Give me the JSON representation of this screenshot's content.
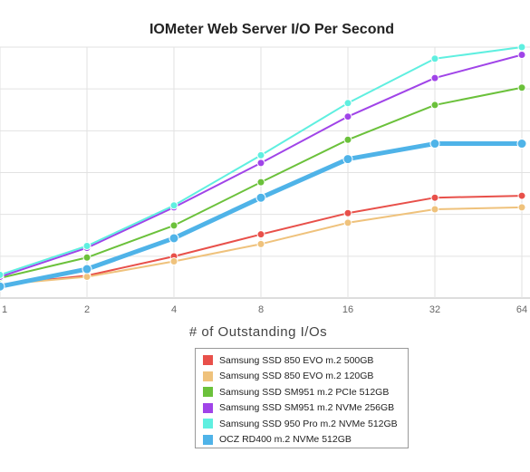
{
  "chart_data": {
    "type": "line",
    "title": "IOMeter Web Server I/O Per Second",
    "xlabel": "# of Outstanding I/Os",
    "ylabel": "",
    "x": [
      1,
      2,
      4,
      8,
      16,
      32,
      64
    ],
    "x_tick_labels": [
      "1",
      "2",
      "4",
      "8",
      "16",
      "32",
      "64"
    ],
    "ylim": [
      0,
      65000
    ],
    "grid": true,
    "legend_position": "bottom-center",
    "series": [
      {
        "name": "Samsung SSD 850 EVO m.2 500GB",
        "color": "#e8504a",
        "values": [
          3500,
          5800,
          10800,
          16500,
          22000,
          26000,
          26500
        ]
      },
      {
        "name": "Samsung SSD 850 EVO m.2 120GB",
        "color": "#efc27c",
        "values": [
          3500,
          5500,
          9500,
          14000,
          19500,
          23000,
          23500
        ]
      },
      {
        "name": "Samsung SSD SM951 m.2 PCIe 512GB",
        "color": "#6bc13b",
        "values": [
          5200,
          10500,
          18800,
          30000,
          41000,
          50000,
          54500
        ]
      },
      {
        "name": "Samsung SSD SM951 m.2 NVMe 256GB",
        "color": "#a044e8",
        "values": [
          5500,
          13000,
          23500,
          35000,
          47000,
          57000,
          63000
        ]
      },
      {
        "name": "Samsung SSD 950 Pro m.2 NVMe 512GB",
        "color": "#5fefe0",
        "values": [
          6000,
          13500,
          24000,
          37000,
          50500,
          62000,
          65000
        ]
      },
      {
        "name": "OCZ RD400 m.2 NVMe 512GB",
        "color": "#4fb3e8",
        "values": [
          3000,
          7500,
          15500,
          26000,
          36000,
          40000,
          40000
        ]
      }
    ],
    "highlight_series": "OCZ RD400 m.2 NVMe 512GB"
  }
}
